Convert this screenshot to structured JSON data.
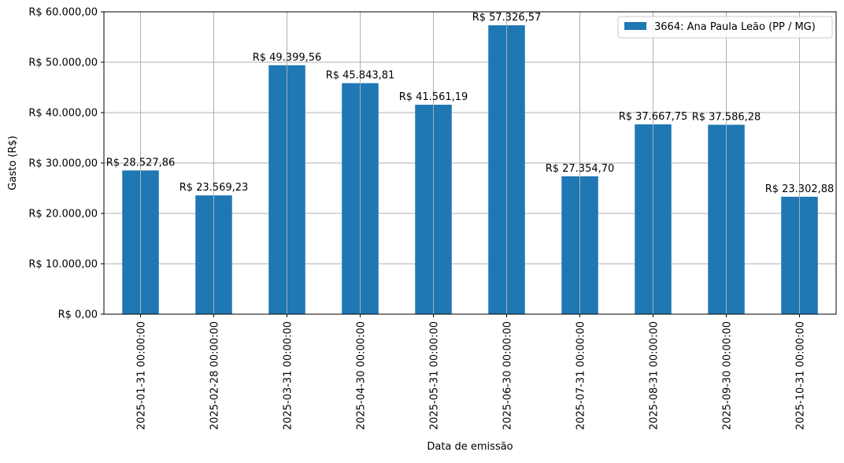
{
  "chart_data": {
    "type": "bar",
    "categories": [
      "2025-01-31 00:00:00",
      "2025-02-28 00:00:00",
      "2025-03-31 00:00:00",
      "2025-04-30 00:00:00",
      "2025-05-31 00:00:00",
      "2025-06-30 00:00:00",
      "2025-07-31 00:00:00",
      "2025-08-31 00:00:00",
      "2025-09-30 00:00:00",
      "2025-10-31 00:00:00"
    ],
    "series": [
      {
        "name": "3664: Ana Paula Leão (PP / MG)",
        "values": [
          28527.86,
          23569.23,
          49399.56,
          45843.81,
          41561.19,
          57326.57,
          27354.7,
          37667.75,
          37586.28,
          23302.88
        ],
        "labels": [
          "R$ 28.527,86",
          "R$ 23.569,23",
          "R$ 49.399,56",
          "R$ 45.843,81",
          "R$ 41.561,19",
          "R$ 57.326,57",
          "R$ 27.354,70",
          "R$ 37.667,75",
          "R$ 37.586,28",
          "R$ 23.302,88"
        ],
        "color": "#1f77b4"
      }
    ],
    "title": "",
    "xlabel": "Data de emissão",
    "ylabel": "Gasto (R$)",
    "ylim": [
      0,
      60000
    ],
    "yticks": [
      0,
      10000,
      20000,
      30000,
      40000,
      50000,
      60000
    ],
    "ytick_labels": [
      "R$ 0,00",
      "R$ 10.000,00",
      "R$ 20.000,00",
      "R$ 30.000,00",
      "R$ 40.000,00",
      "R$ 50.000,00",
      "R$ 60.000,00"
    ],
    "grid": true,
    "grid_color": "#b0b0b0",
    "legend_position": "top-right"
  }
}
